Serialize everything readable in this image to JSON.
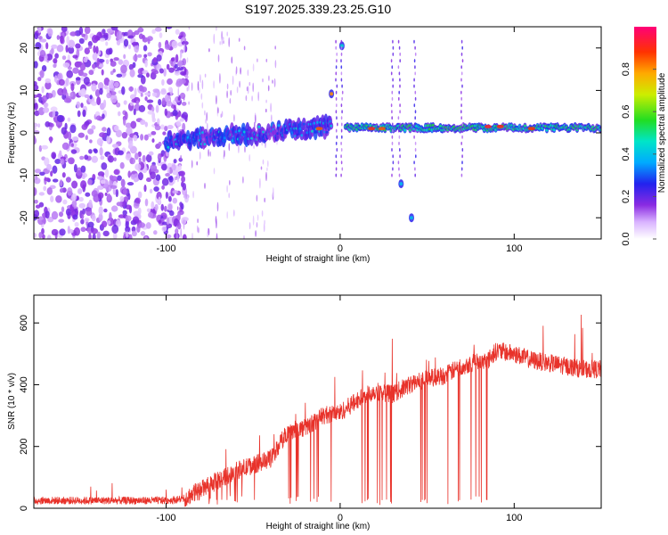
{
  "title": "S197.2025.339.23.25.G10",
  "chart_data": [
    {
      "type": "heatmap",
      "name": "spectrogram",
      "xlabel": "Height of straight line (km)",
      "ylabel": "Frequency (Hz)",
      "xlim": [
        -176,
        150
      ],
      "ylim": [
        -25,
        25
      ],
      "xticks": [
        -100,
        0,
        100
      ],
      "xtick_labels": [
        "-100",
        "0",
        "100"
      ],
      "yticks": [
        -20,
        -10,
        0,
        10,
        20
      ],
      "ytick_labels": [
        "-20",
        "-10",
        "0",
        "10",
        "20"
      ],
      "colorbar": {
        "label": "Normalized spectral amplitude",
        "range": [
          0,
          1
        ],
        "ticks": [
          0,
          0.2,
          0.4,
          0.6,
          0.8
        ],
        "tick_labels": [
          "0.0",
          "0.2",
          "0.4",
          "0.6",
          "0.8"
        ]
      },
      "features": [
        {
          "x": [
            -176,
            -90
          ],
          "freq": [
            -25,
            25
          ],
          "amplitude": 0.15,
          "desc": "noise"
        },
        {
          "x": [
            -100,
            -20
          ],
          "freq": [
            -5,
            5
          ],
          "amplitude": 0.35,
          "desc": "drifting tone"
        },
        {
          "x": [
            -15,
            0
          ],
          "freq": [
            0,
            2
          ],
          "amplitude": 0.4
        },
        {
          "x": [
            -6,
            -2
          ],
          "freq": [
            8,
            10
          ],
          "amplitude": 0.8
        },
        {
          "x": [
            0,
            2
          ],
          "freq": [
            19,
            22
          ],
          "amplitude": 0.5
        },
        {
          "x": [
            5,
            150
          ],
          "freq": [
            0,
            2
          ],
          "amplitude": 0.5,
          "desc": "steady tone"
        },
        {
          "x": [
            34,
            36
          ],
          "freq": [
            -13,
            -11
          ],
          "amplitude": 0.4
        },
        {
          "x": [
            40,
            42
          ],
          "freq": [
            -21,
            -19
          ],
          "amplitude": 0.4
        },
        {
          "x": [
            80,
            95
          ],
          "freq": [
            1,
            2
          ],
          "amplitude": 0.9
        }
      ]
    },
    {
      "type": "line",
      "name": "snr",
      "xlabel": "Height of straight line (km)",
      "ylabel": "SNR (10 * v/v)",
      "xlim": [
        -176,
        150
      ],
      "ylim": [
        0,
        690
      ],
      "xticks": [
        -100,
        0,
        100
      ],
      "xtick_labels": [
        "-100",
        "0",
        "100"
      ],
      "yticks": [
        0,
        200,
        400,
        600
      ],
      "ytick_labels": [
        "0",
        "200",
        "400",
        "600"
      ],
      "color": "#e8322a",
      "series_envelope": {
        "x": [
          -176,
          -100,
          -90,
          -80,
          -60,
          -40,
          -30,
          -20,
          -10,
          0,
          10,
          20,
          30,
          40,
          50,
          60,
          70,
          80,
          85,
          90,
          100,
          110,
          120,
          130,
          140,
          150
        ],
        "y": [
          25,
          25,
          30,
          60,
          120,
          160,
          250,
          260,
          300,
          310,
          350,
          380,
          370,
          400,
          420,
          430,
          460,
          480,
          480,
          510,
          500,
          480,
          470,
          460,
          450,
          450
        ]
      }
    }
  ]
}
